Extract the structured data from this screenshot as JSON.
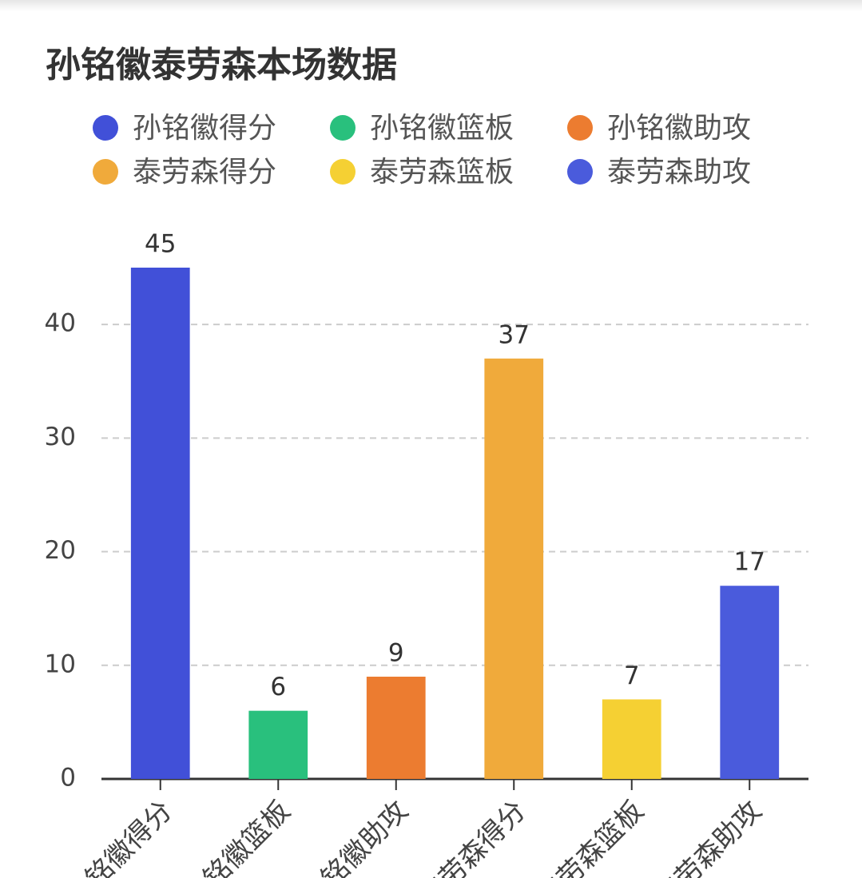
{
  "chart_data": {
    "type": "bar",
    "title": "孙铭徽泰劳森本场数据",
    "categories": [
      "孙铭徽得分",
      "孙铭徽篮板",
      "孙铭徽助攻",
      "泰劳森得分",
      "泰劳森篮板",
      "泰劳森助攻"
    ],
    "values": [
      45,
      6,
      9,
      37,
      7,
      17
    ],
    "colors": [
      "#4150d8",
      "#29c07d",
      "#ec7c30",
      "#f0aa3b",
      "#f5d033",
      "#4a5bdc"
    ],
    "ylim": [
      0,
      45
    ],
    "yticks": [
      0,
      10,
      20,
      30,
      40
    ],
    "grid": true
  }
}
